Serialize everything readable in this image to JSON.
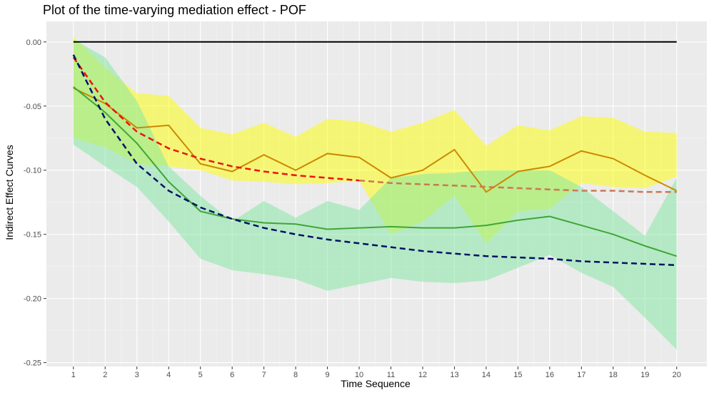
{
  "chart_data": {
    "type": "line",
    "title": "Plot of the time-varying mediation effect - POF",
    "xlabel": "Time Sequence",
    "ylabel": "Indirect Effect Curves",
    "xlim": [
      0.15,
      20.95
    ],
    "ylim": [
      -0.253,
      0.016
    ],
    "x_ticks": [
      1,
      2,
      3,
      4,
      5,
      6,
      7,
      8,
      9,
      10,
      11,
      12,
      13,
      14,
      15,
      16,
      17,
      18,
      19,
      20
    ],
    "y_ticks": [
      0.0,
      -0.05,
      -0.1,
      -0.15,
      -0.2,
      -0.25
    ],
    "y_tick_labels": [
      "0.00",
      "-0.05",
      "-0.10",
      "-0.15",
      "-0.20",
      "-0.25"
    ],
    "grid": true,
    "background": "#ebebeb",
    "x": [
      1,
      2,
      3,
      4,
      5,
      6,
      7,
      8,
      9,
      10,
      11,
      12,
      13,
      14,
      15,
      16,
      17,
      18,
      19,
      20
    ],
    "bands": [
      {
        "color": "#ffff00",
        "opacity": 0.5,
        "upper": [
          0.004,
          -0.02,
          -0.04,
          -0.042,
          -0.067,
          -0.072,
          -0.063,
          -0.074,
          -0.06,
          -0.062,
          -0.07,
          -0.063,
          -0.053,
          -0.081,
          -0.065,
          -0.069,
          -0.058,
          -0.059,
          -0.07,
          -0.071
        ],
        "lower": [
          -0.075,
          -0.082,
          -0.095,
          -0.097,
          -0.1,
          -0.108,
          -0.109,
          -0.111,
          -0.11,
          -0.108,
          -0.15,
          -0.14,
          -0.12,
          -0.157,
          -0.132,
          -0.13,
          -0.11,
          -0.113,
          -0.114,
          -0.105
        ]
      },
      {
        "color": "#7fe8a0",
        "opacity": 0.5,
        "upper": [
          0.002,
          -0.012,
          -0.046,
          -0.097,
          -0.12,
          -0.14,
          -0.124,
          -0.137,
          -0.124,
          -0.131,
          -0.106,
          -0.103,
          -0.102,
          -0.1,
          -0.1,
          -0.1,
          -0.113,
          -0.132,
          -0.151,
          -0.106
        ],
        "lower": [
          -0.08,
          -0.097,
          -0.113,
          -0.14,
          -0.169,
          -0.178,
          -0.181,
          -0.185,
          -0.194,
          -0.189,
          -0.184,
          -0.187,
          -0.188,
          -0.186,
          -0.176,
          -0.166,
          -0.18,
          -0.191,
          -0.215,
          -0.24
        ]
      }
    ],
    "series": [
      {
        "color": "#000000",
        "dash": false,
        "width": 2,
        "values": [
          0,
          0,
          0,
          0,
          0,
          0,
          0,
          0,
          0,
          0,
          0,
          0,
          0,
          0,
          0,
          0,
          0,
          0,
          0,
          0
        ]
      },
      {
        "color": "#cc8800",
        "dash": false,
        "width": 2,
        "values": [
          -0.036,
          -0.048,
          -0.067,
          -0.065,
          -0.095,
          -0.101,
          -0.088,
          -0.1,
          -0.087,
          -0.09,
          -0.106,
          -0.1,
          -0.084,
          -0.117,
          -0.101,
          -0.097,
          -0.085,
          -0.091,
          -0.104,
          -0.116
        ]
      },
      {
        "color": "#3fa636",
        "dash": false,
        "width": 2,
        "values": [
          -0.035,
          -0.055,
          -0.079,
          -0.109,
          -0.132,
          -0.138,
          -0.141,
          -0.142,
          -0.146,
          -0.145,
          -0.144,
          -0.145,
          -0.145,
          -0.143,
          -0.139,
          -0.136,
          -0.143,
          -0.15,
          -0.159,
          -0.167
        ]
      },
      {
        "color": "#ee1111",
        "dash": true,
        "width": 2.5,
        "to_index": 9,
        "continue_color": "#cc7755",
        "values": [
          -0.012,
          -0.047,
          -0.07,
          -0.083,
          -0.091,
          -0.097,
          -0.101,
          -0.104,
          -0.106,
          -0.108,
          -0.11,
          -0.111,
          -0.112,
          -0.113,
          -0.114,
          -0.115,
          -0.116,
          -0.116,
          -0.117,
          -0.117
        ]
      },
      {
        "color": "#001166",
        "dash": true,
        "width": 2.5,
        "values": [
          -0.01,
          -0.06,
          -0.095,
          -0.116,
          -0.129,
          -0.138,
          -0.145,
          -0.15,
          -0.154,
          -0.157,
          -0.16,
          -0.163,
          -0.165,
          -0.167,
          -0.168,
          -0.169,
          -0.171,
          -0.172,
          -0.173,
          -0.174
        ]
      }
    ]
  }
}
